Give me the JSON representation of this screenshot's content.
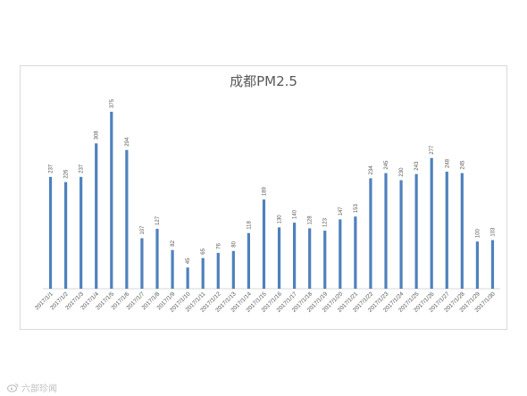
{
  "chart_data": {
    "type": "bar",
    "title": "成都PM2.5",
    "xlabel": "",
    "ylabel": "",
    "ylim": [
      0,
      400
    ],
    "grid": false,
    "legend": "none",
    "bar_color": "#4f81bd",
    "categories": [
      "2017/1/1",
      "2017/1/2",
      "2017/1/3",
      "2017/1/4",
      "2017/1/5",
      "2017/1/6",
      "2017/1/7",
      "2017/1/8",
      "2017/1/9",
      "2017/1/10",
      "2017/1/11",
      "2017/1/12",
      "2017/1/13",
      "2017/1/14",
      "2017/1/15",
      "2017/1/16",
      "2017/1/17",
      "2017/1/18",
      "2017/1/19",
      "2017/1/20",
      "2017/1/21",
      "2017/1/22",
      "2017/1/23",
      "2017/1/24",
      "2017/1/25",
      "2017/1/26",
      "2017/1/27",
      "2017/1/28",
      "2017/1/29",
      "2017/1/30"
    ],
    "values": [
      237,
      226,
      237,
      308,
      375,
      294,
      107,
      127,
      82,
      45,
      65,
      76,
      80,
      118,
      189,
      130,
      140,
      128,
      123,
      147,
      153,
      234,
      245,
      230,
      243,
      277,
      248,
      245,
      100,
      103
    ]
  },
  "watermark": {
    "text": "六部珍闻"
  }
}
